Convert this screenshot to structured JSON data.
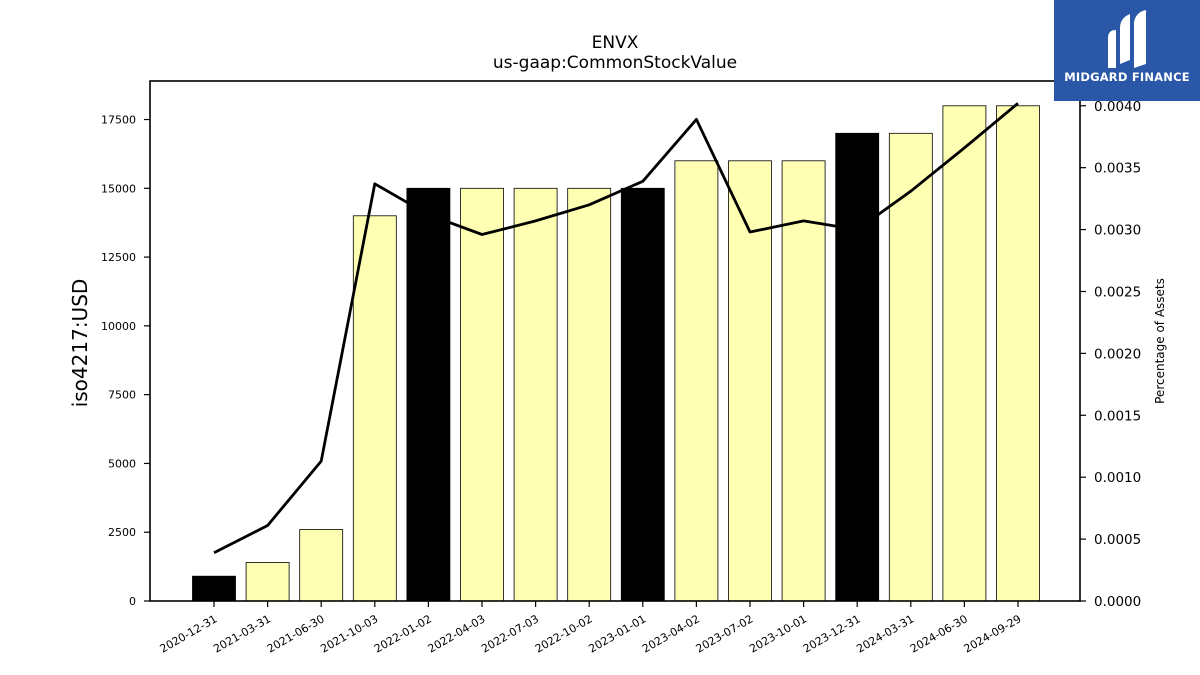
{
  "chart_data": {
    "type": "bar",
    "title": "ENVX",
    "subtitle": "us-gaap:CommonStockValue",
    "ylabel": "iso4217:USD",
    "y2label": "Percentage of Assets",
    "categories": [
      "2020-12-31",
      "2021-03-31",
      "2021-06-30",
      "2021-10-03",
      "2022-01-02",
      "2022-04-03",
      "2022-07-03",
      "2022-10-02",
      "2023-01-01",
      "2023-04-02",
      "2023-07-02",
      "2023-10-01",
      "2023-12-31",
      "2024-03-31",
      "2024-06-30",
      "2024-09-29"
    ],
    "series": [
      {
        "values": [
          900,
          1400,
          2600,
          14000,
          15000,
          15000,
          15000,
          15000,
          15000,
          16000,
          16000,
          16000,
          17000,
          17000,
          18000,
          18000
        ],
        "highlight": [
          true,
          false,
          false,
          false,
          true,
          false,
          false,
          false,
          true,
          false,
          false,
          false,
          true,
          false,
          false,
          false
        ]
      },
      {
        "axis": "right",
        "values": [
          0.00039,
          0.00061,
          0.00113,
          0.00337,
          0.00312,
          0.00296,
          0.00307,
          0.0032,
          0.00339,
          0.00389,
          0.00298,
          0.00307,
          0.003,
          0.00331,
          0.00366,
          0.00402
        ]
      }
    ],
    "ylim": [
      0,
      18900
    ],
    "yticks": [
      0,
      2500,
      5000,
      7500,
      10000,
      12500,
      15000,
      17500
    ],
    "y2lim": [
      0,
      0.0042
    ],
    "y2ticks": [
      "0.0000",
      "0.0005",
      "0.0010",
      "0.0015",
      "0.0020",
      "0.0025",
      "0.0030",
      "0.0035",
      "0.0040"
    ],
    "colors": {
      "bar": "#ffffb3",
      "bar_highlight": "#000000",
      "line": "#000000"
    },
    "grid": false
  },
  "logo": {
    "text": "MIDGARD FINANCE"
  }
}
